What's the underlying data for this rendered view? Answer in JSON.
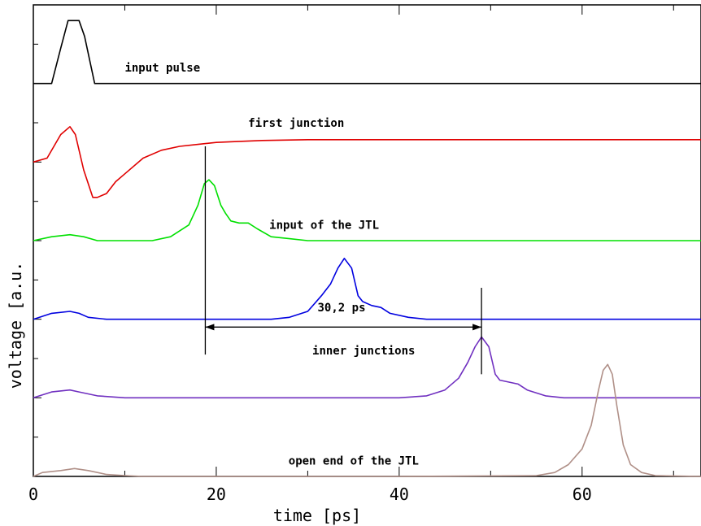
{
  "chart_data": {
    "type": "line",
    "title": "",
    "xlabel": "time [ps]",
    "ylabel": "voltage [a.u.",
    "xlim": [
      0,
      73
    ],
    "ylim": [
      0,
      12
    ],
    "x_ticks": [
      0,
      20,
      40,
      60
    ],
    "x_tick_labels": [
      "0",
      "20",
      "40",
      "60"
    ],
    "grid": false,
    "legend": "none",
    "series": [
      {
        "color": "#000000",
        "x": [
          0,
          2,
          3,
          3.8,
          5,
          5.6,
          6.7,
          73
        ],
        "y": [
          10,
          10,
          10.9,
          11.6,
          11.6,
          11.2,
          10,
          10
        ]
      },
      {
        "color": "#e00000",
        "x": [
          0,
          1.5,
          3,
          4,
          4.6,
          5.5,
          6.5,
          7,
          8,
          9,
          10,
          12,
          14,
          16,
          18,
          20,
          22,
          25,
          30,
          40,
          73
        ],
        "y": [
          8.0,
          8.1,
          8.7,
          8.9,
          8.7,
          7.8,
          7.1,
          7.1,
          7.2,
          7.5,
          7.7,
          8.1,
          8.3,
          8.4,
          8.45,
          8.5,
          8.52,
          8.55,
          8.57,
          8.57,
          8.57
        ]
      },
      {
        "color": "#00e000",
        "x": [
          0,
          2,
          4,
          5.5,
          7,
          9,
          11,
          13,
          15,
          17,
          18,
          18.7,
          19.2,
          19.8,
          20.5,
          21,
          21.6,
          22.5,
          23.5,
          24.5,
          26,
          28,
          30,
          35,
          73
        ],
        "y": [
          6.0,
          6.1,
          6.15,
          6.1,
          6.0,
          6.0,
          6.0,
          6.0,
          6.1,
          6.4,
          6.9,
          7.45,
          7.55,
          7.4,
          6.9,
          6.7,
          6.5,
          6.45,
          6.45,
          6.3,
          6.1,
          6.05,
          6.0,
          6.0,
          6.0
        ]
      },
      {
        "color": "#0000e0",
        "x": [
          0,
          2,
          4,
          5,
          6,
          8,
          10,
          20,
          26,
          28,
          30,
          31.5,
          32.5,
          33.3,
          34,
          34.8,
          35.5,
          36,
          37,
          38,
          39,
          41,
          43,
          73
        ],
        "y": [
          4.0,
          4.15,
          4.2,
          4.15,
          4.05,
          4.0,
          4.0,
          4.0,
          4.0,
          4.05,
          4.2,
          4.6,
          4.9,
          5.3,
          5.55,
          5.3,
          4.6,
          4.45,
          4.35,
          4.3,
          4.15,
          4.05,
          4.0,
          4.0
        ]
      },
      {
        "color": "#7030c0",
        "x": [
          0,
          2,
          4,
          5,
          7,
          10,
          20,
          30,
          40,
          43,
          45,
          46.5,
          47.5,
          48.3,
          49,
          49.8,
          50.5,
          51,
          52,
          53,
          54,
          56,
          58,
          73
        ],
        "y": [
          2.0,
          2.15,
          2.2,
          2.15,
          2.05,
          2.0,
          2.0,
          2.0,
          2.0,
          2.05,
          2.2,
          2.5,
          2.9,
          3.3,
          3.55,
          3.3,
          2.6,
          2.45,
          2.4,
          2.35,
          2.2,
          2.05,
          2.0,
          2.0
        ]
      },
      {
        "color": "#b09088",
        "x": [
          0,
          1,
          3,
          4.5,
          6,
          8,
          10,
          12,
          20,
          40,
          55,
          57,
          58.5,
          60,
          61,
          61.8,
          62.3,
          62.8,
          63.3,
          63.8,
          64.5,
          65.3,
          66.5,
          68,
          73
        ],
        "y": [
          0.0,
          0.1,
          0.15,
          0.2,
          0.15,
          0.05,
          0.02,
          0.0,
          0.0,
          0.0,
          0.02,
          0.1,
          0.3,
          0.7,
          1.3,
          2.2,
          2.7,
          2.85,
          2.6,
          1.8,
          0.8,
          0.3,
          0.1,
          0.02,
          0.0
        ]
      }
    ],
    "labels": [
      {
        "text": "input pulse",
        "x": 10,
        "y": 10.3
      },
      {
        "text": "first junction",
        "x": 23.5,
        "y": 8.9
      },
      {
        "text": "input of the JTL",
        "x": 25.8,
        "y": 6.3
      },
      {
        "text": "inner junctions",
        "x": 30.5,
        "y": 3.1
      },
      {
        "text": "open end of the JTL",
        "x": 27.9,
        "y": 0.3
      }
    ],
    "measurement": {
      "label": "30,2 ps",
      "from_x": 18.8,
      "to_x": 49,
      "arrow_y": 3.8,
      "label_x": 33.7,
      "label_y": 4.2,
      "marker1": {
        "x": 18.8,
        "y_range": [
          3.1,
          8.4
        ]
      },
      "marker2": {
        "x": 49,
        "y_range": [
          2.6,
          4.8
        ]
      }
    }
  }
}
